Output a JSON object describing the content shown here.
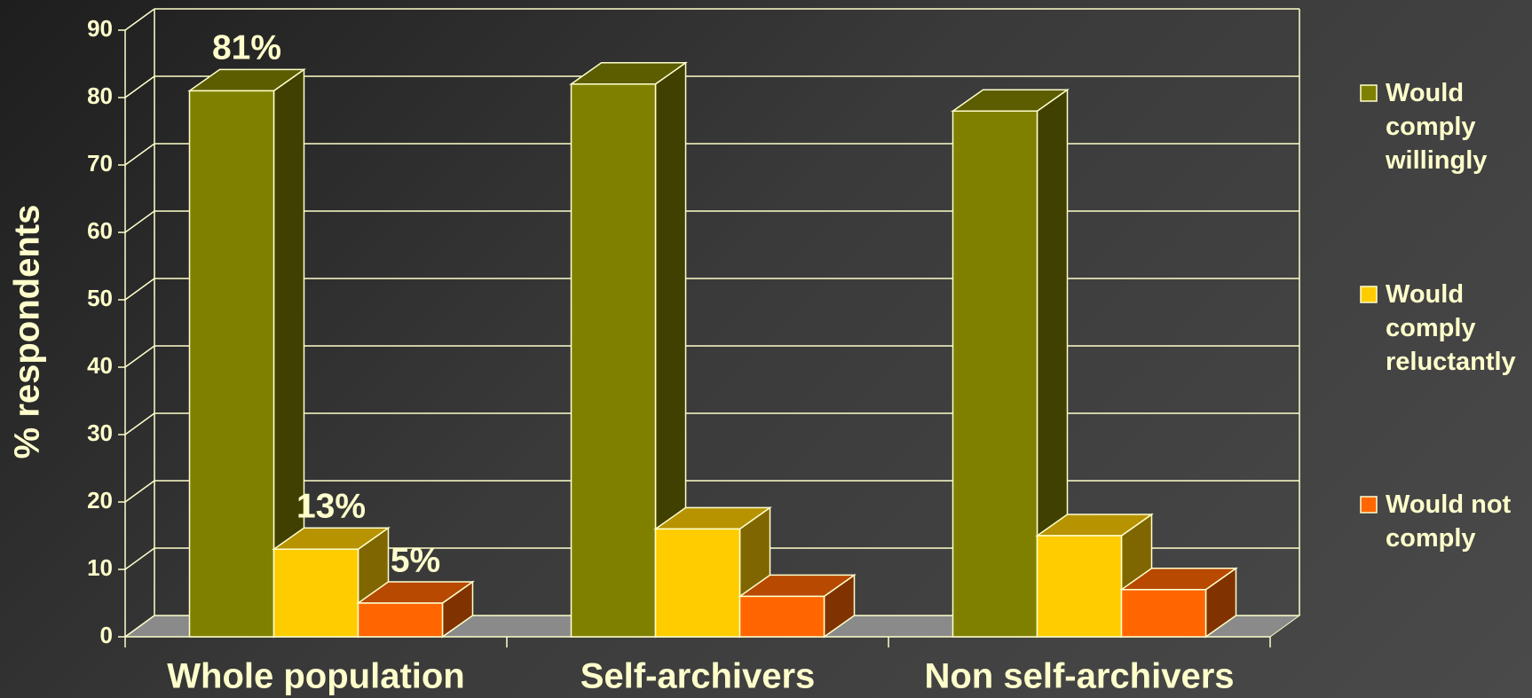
{
  "chart_data": {
    "type": "bar3d",
    "y_label": "% respondents",
    "categories": [
      "Whole population",
      "Self-archivers",
      "Non self-archivers"
    ],
    "series": [
      {
        "name": "Would comply willingly",
        "color": "#808000",
        "values": [
          81,
          82,
          78
        ],
        "value_labels": [
          "81%",
          null,
          null
        ]
      },
      {
        "name": "Would comply reluctantly",
        "color": "#ffcc00",
        "values": [
          13,
          16,
          15
        ],
        "value_labels": [
          "13%",
          null,
          null
        ]
      },
      {
        "name": "Would not comply",
        "color": "#ff6600",
        "values": [
          5,
          6,
          7
        ],
        "value_labels": [
          "5%",
          null,
          null
        ]
      }
    ],
    "ylim": [
      0,
      90
    ],
    "yticks": [
      0,
      10,
      20,
      30,
      40,
      50,
      60,
      70,
      80,
      90
    ],
    "grid": true,
    "legend": "right"
  }
}
